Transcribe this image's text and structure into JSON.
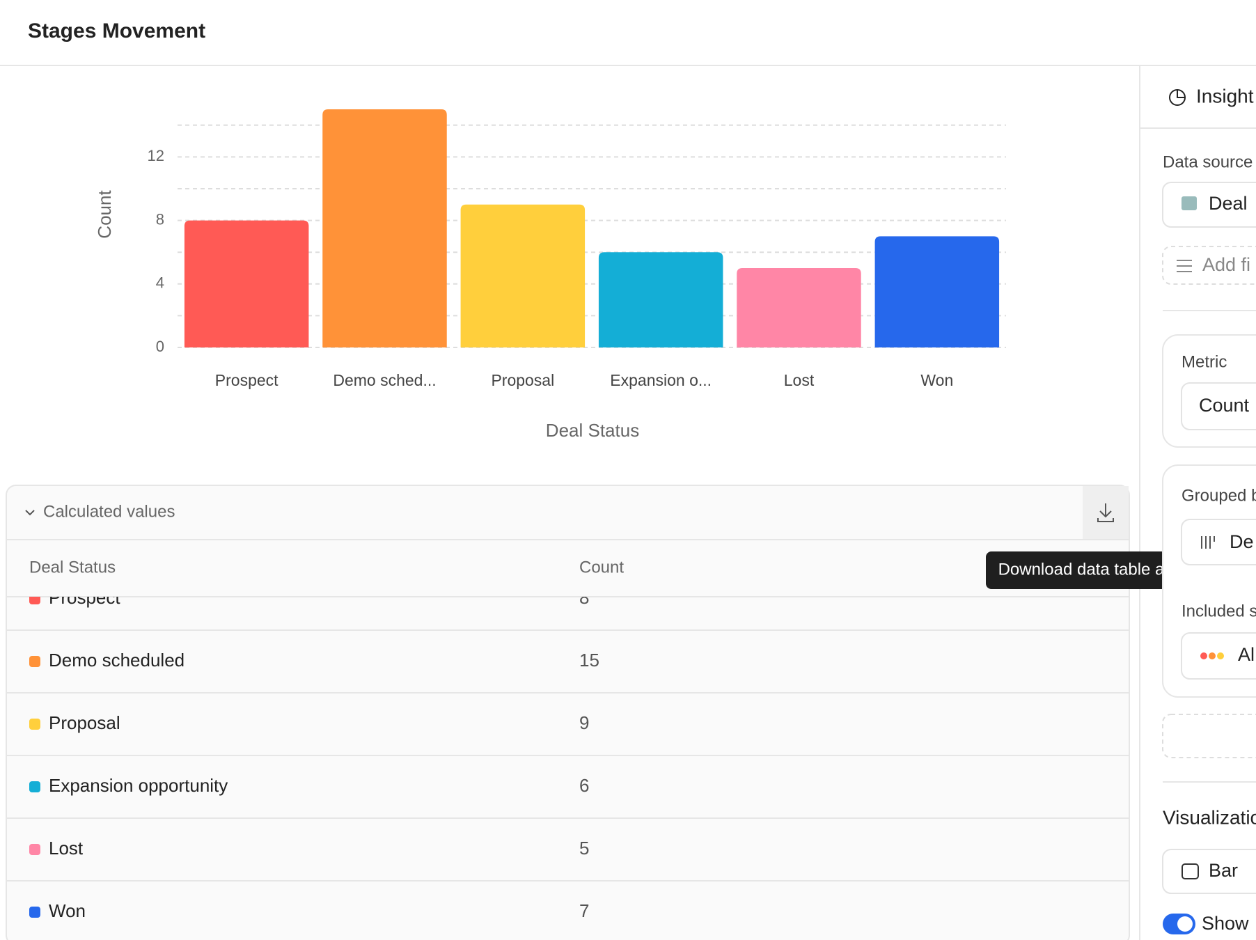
{
  "header": {
    "title": "Stages Movement"
  },
  "chart_data": {
    "type": "bar",
    "categories": [
      "Prospect",
      "Demo sched...",
      "Proposal",
      "Expansion o...",
      "Lost",
      "Won"
    ],
    "values": [
      8,
      15,
      9,
      6,
      5,
      7
    ],
    "colors": [
      "#ff5a55",
      "#ff9238",
      "#ffcf3c",
      "#14aed6",
      "#ff86a6",
      "#2668ec"
    ],
    "x_label": "Deal Status",
    "y_label": "Count",
    "ylim": [
      0,
      15
    ],
    "yticks": [
      0,
      4,
      8,
      12
    ],
    "minor_yticks": [
      2,
      6,
      10,
      14
    ],
    "grid": true
  },
  "table": {
    "title": "Calculated values",
    "columns": [
      "Deal Status",
      "Count"
    ],
    "rows": [
      [
        "Prospect",
        8
      ],
      [
        "Demo scheduled",
        15
      ],
      [
        "Proposal",
        9
      ],
      [
        "Expansion opportunity",
        6
      ],
      [
        "Lost",
        5
      ],
      [
        "Won",
        7
      ]
    ]
  },
  "tooltip": "Download data table as CSV",
  "sidebar": {
    "tab": "Insight",
    "data_source_label": "Data source",
    "data_source": "Deal",
    "add_filter": "Add fi",
    "metric_label": "Metric",
    "metric": "Count",
    "grouped_label": "Grouped b",
    "grouped": "De",
    "included_label": "Included s",
    "included": "Al",
    "visualization_label": "Visualizatio",
    "visualization": "Bar",
    "toggle": "Show"
  }
}
